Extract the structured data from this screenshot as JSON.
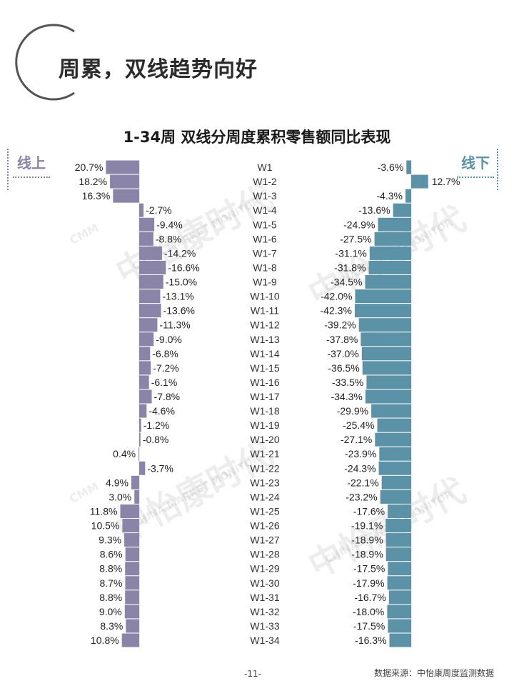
{
  "page_title": "周累，双线趋势向好",
  "chart_title": "1-34周 双线分周度累积零售额同比表现",
  "online_label": "线上",
  "offline_label": "线下",
  "footer": {
    "page_number": "-11-",
    "source": "数据来源：中怡康周度监测数据"
  },
  "watermark": {
    "cn": "中怡康时代",
    "en": "CHINA MARKET MONITOR",
    "logo": "CMM"
  },
  "colors": {
    "online": "#8b84a9",
    "offline": "#5b92a8",
    "title": "#2b2b2b"
  },
  "chart_data": [
    {
      "type": "bar",
      "orientation": "horizontal",
      "side": "left",
      "categories": [
        "W1",
        "W1-2",
        "W1-3",
        "W1-4",
        "W1-5",
        "W1-6",
        "W1-7",
        "W1-8",
        "W1-9",
        "W1-10",
        "W1-11",
        "W1-12",
        "W1-13",
        "W1-14",
        "W1-15",
        "W1-16",
        "W1-17",
        "W1-18",
        "W1-19",
        "W1-20",
        "W1-21",
        "W1-22",
        "W1-23",
        "W1-24",
        "W1-25",
        "W1-26",
        "W1-27",
        "W1-28",
        "W1-29",
        "W1-30",
        "W1-31",
        "W1-32",
        "W1-33",
        "W1-34"
      ],
      "values": [
        20.7,
        18.2,
        16.3,
        -2.7,
        -9.4,
        -8.8,
        -14.2,
        -16.6,
        -15.0,
        -13.1,
        -13.6,
        -11.3,
        -9.0,
        -6.8,
        -7.2,
        -6.1,
        -7.8,
        -4.6,
        -1.2,
        -0.8,
        0.4,
        -3.7,
        4.9,
        3.0,
        11.8,
        10.5,
        9.3,
        8.6,
        8.8,
        8.7,
        8.8,
        9.0,
        8.3,
        10.8
      ],
      "labels": [
        "20.7%",
        "18.2%",
        "16.3%",
        "-2.7%",
        "-9.4%",
        "-8.8%",
        "-14.2%",
        "-16.6%",
        "-15.0%",
        "-13.1%",
        "-13.6%",
        "-11.3%",
        "-9.0%",
        "-6.8%",
        "-7.2%",
        "-6.1%",
        "-7.8%",
        "-4.6%",
        "-1.2%",
        "-0.8%",
        "0.4%",
        "-3.7%",
        "4.9%",
        "3.0%",
        "11.8%",
        "10.5%",
        "9.3%",
        "8.6%",
        "8.8%",
        "8.7%",
        "8.8%",
        "9.0%",
        "8.3%",
        "10.8%"
      ]
    },
    {
      "type": "bar",
      "orientation": "horizontal",
      "side": "right",
      "categories": [
        "W1",
        "W1-2",
        "W1-3",
        "W1-4",
        "W1-5",
        "W1-6",
        "W1-7",
        "W1-8",
        "W1-9",
        "W1-10",
        "W1-11",
        "W1-12",
        "W1-13",
        "W1-14",
        "W1-15",
        "W1-16",
        "W1-17",
        "W1-18",
        "W1-19",
        "W1-20",
        "W1-21",
        "W1-22",
        "W1-23",
        "W1-24",
        "W1-25",
        "W1-26",
        "W1-27",
        "W1-28",
        "W1-29",
        "W1-30",
        "W1-31",
        "W1-32",
        "W1-33",
        "W1-34"
      ],
      "values": [
        -3.6,
        12.7,
        -4.3,
        -13.6,
        -24.9,
        -27.5,
        -31.1,
        -31.8,
        -34.5,
        -42.0,
        -42.3,
        -39.2,
        -37.8,
        -37.0,
        -36.5,
        -33.5,
        -34.3,
        -29.9,
        -25.4,
        -27.1,
        -23.9,
        -24.3,
        -22.1,
        -23.2,
        -17.6,
        -19.1,
        -18.9,
        -18.9,
        -17.5,
        -17.9,
        -16.7,
        -18.0,
        -17.5,
        -16.3
      ],
      "labels": [
        "-3.6%",
        "12.7%",
        "-4.3%",
        "-13.6%",
        "-24.9%",
        "-27.5%",
        "-31.1%",
        "-31.8%",
        "-34.5%",
        "-42.0%",
        "-42.3%",
        "-39.2%",
        "-37.8%",
        "-37.0%",
        "-36.5%",
        "-33.5%",
        "-34.3%",
        "-29.9%",
        "-25.4%",
        "-27.1%",
        "-23.9%",
        "-24.3%",
        "-22.1%",
        "-23.2%",
        "-17.6%",
        "-19.1%",
        "-18.9%",
        "-18.9%",
        "-17.5%",
        "-17.9%",
        "-16.7%",
        "-18.0%",
        "-17.5%",
        "-16.3%"
      ]
    }
  ]
}
